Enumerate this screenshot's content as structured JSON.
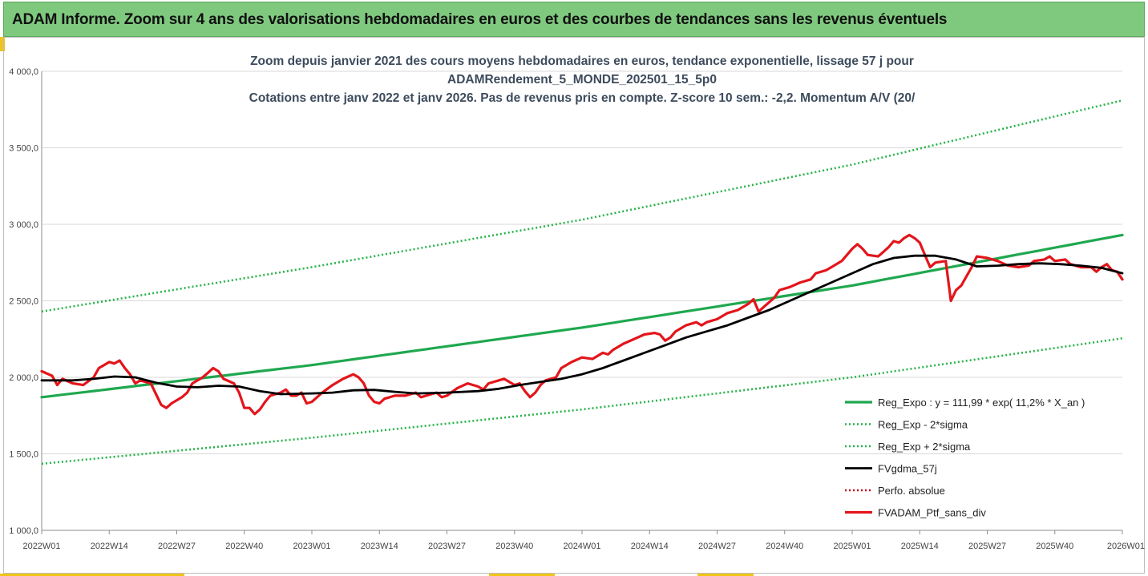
{
  "banner": {
    "title": "ADAM Informe. Zoom sur 4 ans des valorisations hebdomadaires en euros et des courbes de tendances sans les revenus éventuels"
  },
  "colors": {
    "banner_bg": "#7fc97f",
    "trend_green": "#1fa84f",
    "band_green": "#27b34a",
    "smooth_black": "#000000",
    "portfolio_red": "#e3151b",
    "perfo_red": "#c0001a",
    "title_text": "#3d4b5c",
    "gridline": "#d9d9d9"
  },
  "chart_data": {
    "type": "line",
    "title_lines": [
      "Zoom depuis janvier 2021 des cours moyens hebdomadaires  en euros, tendance exponentielle, lissage 57 j pour",
      "ADAMRendement_5_MONDE_202501_15_5p0",
      "Cotations entre janv 2022 et janv 2026. Pas de revenus pris en compte. Z-score 10 sem.: -2,2. Momentum A/V (20/"
    ],
    "x_tick_labels": [
      "2022W01",
      "2022W14",
      "2022W27",
      "2022W40",
      "2023W01",
      "2023W14",
      "2023W27",
      "2023W40",
      "2024W01",
      "2024W14",
      "2024W27",
      "2024W40",
      "2025W01",
      "2025W14",
      "2025W27",
      "2025W40",
      "2026W01"
    ],
    "x_range_weeks": [
      0,
      208
    ],
    "y_tick_labels": [
      "4 000,0",
      "3 500,0",
      "3 000,0",
      "2 500,0",
      "2 000,0",
      "1 500,0",
      "1 000,0"
    ],
    "y_ticks": [
      4000,
      3500,
      3000,
      2500,
      2000,
      1500,
      1000
    ],
    "ylim": [
      1000,
      4000
    ],
    "grid": "horizontal",
    "legend_position": "bottom-right",
    "series": [
      {
        "name": "Reg_Expo : y = 111,99 * exp( 11,2% *  X_an )",
        "style": "solid-green",
        "points": [
          [
            0,
            1870
          ],
          [
            52,
            2080
          ],
          [
            104,
            2325
          ],
          [
            156,
            2600
          ],
          [
            208,
            2930
          ]
        ]
      },
      {
        "name": "Reg_Exp - 2*sigma",
        "style": "dotted-green",
        "points": [
          [
            0,
            1435
          ],
          [
            52,
            1605
          ],
          [
            104,
            1790
          ],
          [
            156,
            2000
          ],
          [
            208,
            2255
          ]
        ]
      },
      {
        "name": "Reg_Exp + 2*sigma",
        "style": "dotted-green",
        "points": [
          [
            0,
            2430
          ],
          [
            52,
            2720
          ],
          [
            104,
            3030
          ],
          [
            156,
            3390
          ],
          [
            208,
            3810
          ]
        ]
      },
      {
        "name": "FVgdma_57j",
        "style": "solid-black",
        "points": [
          [
            0,
            1980
          ],
          [
            6,
            1980
          ],
          [
            10,
            1990
          ],
          [
            14,
            2005
          ],
          [
            18,
            2000
          ],
          [
            22,
            1965
          ],
          [
            26,
            1940
          ],
          [
            30,
            1935
          ],
          [
            34,
            1945
          ],
          [
            38,
            1940
          ],
          [
            42,
            1910
          ],
          [
            46,
            1890
          ],
          [
            52,
            1895
          ],
          [
            56,
            1900
          ],
          [
            60,
            1915
          ],
          [
            64,
            1918
          ],
          [
            68,
            1905
          ],
          [
            72,
            1895
          ],
          [
            78,
            1900
          ],
          [
            84,
            1910
          ],
          [
            88,
            1925
          ],
          [
            92,
            1950
          ],
          [
            96,
            1970
          ],
          [
            100,
            1990
          ],
          [
            104,
            2020
          ],
          [
            108,
            2060
          ],
          [
            112,
            2110
          ],
          [
            116,
            2160
          ],
          [
            120,
            2210
          ],
          [
            124,
            2260
          ],
          [
            128,
            2300
          ],
          [
            132,
            2340
          ],
          [
            136,
            2390
          ],
          [
            140,
            2440
          ],
          [
            144,
            2500
          ],
          [
            148,
            2560
          ],
          [
            152,
            2620
          ],
          [
            156,
            2680
          ],
          [
            160,
            2740
          ],
          [
            164,
            2780
          ],
          [
            168,
            2795
          ],
          [
            172,
            2795
          ],
          [
            176,
            2770
          ],
          [
            180,
            2725
          ],
          [
            184,
            2730
          ],
          [
            188,
            2740
          ],
          [
            192,
            2745
          ],
          [
            196,
            2740
          ],
          [
            200,
            2730
          ],
          [
            204,
            2715
          ],
          [
            208,
            2680
          ]
        ]
      },
      {
        "name": "Perfo. absolue",
        "style": "dotted-red",
        "points": []
      },
      {
        "name": "FVADAM_Ptf_sans_div",
        "style": "solid-red",
        "points": [
          [
            0,
            2040
          ],
          [
            2,
            2010
          ],
          [
            3,
            1950
          ],
          [
            4,
            1990
          ],
          [
            6,
            1960
          ],
          [
            8,
            1950
          ],
          [
            10,
            2000
          ],
          [
            11,
            2060
          ],
          [
            13,
            2100
          ],
          [
            14,
            2090
          ],
          [
            15,
            2110
          ],
          [
            16,
            2060
          ],
          [
            17,
            2020
          ],
          [
            18,
            1960
          ],
          [
            19,
            1980
          ],
          [
            21,
            1960
          ],
          [
            22,
            1890
          ],
          [
            23,
            1820
          ],
          [
            24,
            1800
          ],
          [
            25,
            1830
          ],
          [
            27,
            1870
          ],
          [
            28,
            1900
          ],
          [
            29,
            1960
          ],
          [
            31,
            2000
          ],
          [
            32,
            2030
          ],
          [
            33,
            2060
          ],
          [
            34,
            2040
          ],
          [
            35,
            1990
          ],
          [
            37,
            1960
          ],
          [
            38,
            1900
          ],
          [
            39,
            1800
          ],
          [
            40,
            1800
          ],
          [
            41,
            1760
          ],
          [
            42,
            1790
          ],
          [
            43,
            1840
          ],
          [
            44,
            1880
          ],
          [
            46,
            1900
          ],
          [
            47,
            1920
          ],
          [
            48,
            1880
          ],
          [
            49,
            1880
          ],
          [
            50,
            1900
          ],
          [
            51,
            1830
          ],
          [
            52,
            1840
          ],
          [
            54,
            1900
          ],
          [
            56,
            1950
          ],
          [
            58,
            1990
          ],
          [
            60,
            2020
          ],
          [
            61,
            2000
          ],
          [
            62,
            1960
          ],
          [
            63,
            1880
          ],
          [
            64,
            1840
          ],
          [
            65,
            1830
          ],
          [
            66,
            1860
          ],
          [
            68,
            1880
          ],
          [
            70,
            1880
          ],
          [
            72,
            1900
          ],
          [
            73,
            1870
          ],
          [
            74,
            1880
          ],
          [
            76,
            1900
          ],
          [
            77,
            1870
          ],
          [
            78,
            1880
          ],
          [
            80,
            1930
          ],
          [
            82,
            1960
          ],
          [
            84,
            1940
          ],
          [
            85,
            1920
          ],
          [
            86,
            1960
          ],
          [
            88,
            1980
          ],
          [
            89,
            1990
          ],
          [
            90,
            1970
          ],
          [
            91,
            1950
          ],
          [
            92,
            1960
          ],
          [
            93,
            1910
          ],
          [
            94,
            1870
          ],
          [
            95,
            1900
          ],
          [
            96,
            1950
          ],
          [
            97,
            1980
          ],
          [
            99,
            2000
          ],
          [
            100,
            2060
          ],
          [
            102,
            2100
          ],
          [
            104,
            2130
          ],
          [
            106,
            2120
          ],
          [
            108,
            2160
          ],
          [
            109,
            2150
          ],
          [
            110,
            2180
          ],
          [
            112,
            2220
          ],
          [
            114,
            2250
          ],
          [
            116,
            2280
          ],
          [
            118,
            2290
          ],
          [
            119,
            2280
          ],
          [
            120,
            2240
          ],
          [
            121,
            2260
          ],
          [
            122,
            2300
          ],
          [
            124,
            2340
          ],
          [
            126,
            2360
          ],
          [
            127,
            2340
          ],
          [
            128,
            2360
          ],
          [
            130,
            2380
          ],
          [
            132,
            2420
          ],
          [
            134,
            2440
          ],
          [
            136,
            2480
          ],
          [
            137,
            2510
          ],
          [
            138,
            2430
          ],
          [
            139,
            2460
          ],
          [
            141,
            2520
          ],
          [
            142,
            2570
          ],
          [
            144,
            2590
          ],
          [
            146,
            2620
          ],
          [
            148,
            2640
          ],
          [
            149,
            2680
          ],
          [
            151,
            2700
          ],
          [
            152,
            2720
          ],
          [
            154,
            2760
          ],
          [
            156,
            2840
          ],
          [
            157,
            2870
          ],
          [
            158,
            2840
          ],
          [
            159,
            2800
          ],
          [
            161,
            2790
          ],
          [
            162,
            2820
          ],
          [
            163,
            2850
          ],
          [
            164,
            2890
          ],
          [
            165,
            2880
          ],
          [
            166,
            2910
          ],
          [
            167,
            2930
          ],
          [
            168,
            2910
          ],
          [
            169,
            2880
          ],
          [
            170,
            2800
          ],
          [
            171,
            2720
          ],
          [
            172,
            2750
          ],
          [
            174,
            2760
          ],
          [
            175,
            2500
          ],
          [
            176,
            2570
          ],
          [
            177,
            2600
          ],
          [
            178,
            2660
          ],
          [
            179,
            2720
          ],
          [
            180,
            2790
          ],
          [
            182,
            2780
          ],
          [
            184,
            2760
          ],
          [
            186,
            2730
          ],
          [
            188,
            2720
          ],
          [
            190,
            2730
          ],
          [
            191,
            2760
          ],
          [
            193,
            2770
          ],
          [
            194,
            2790
          ],
          [
            195,
            2760
          ],
          [
            197,
            2770
          ],
          [
            198,
            2740
          ],
          [
            200,
            2720
          ],
          [
            202,
            2720
          ],
          [
            203,
            2690
          ],
          [
            204,
            2720
          ],
          [
            205,
            2740
          ],
          [
            206,
            2700
          ],
          [
            207,
            2690
          ],
          [
            208,
            2640
          ]
        ]
      }
    ]
  }
}
